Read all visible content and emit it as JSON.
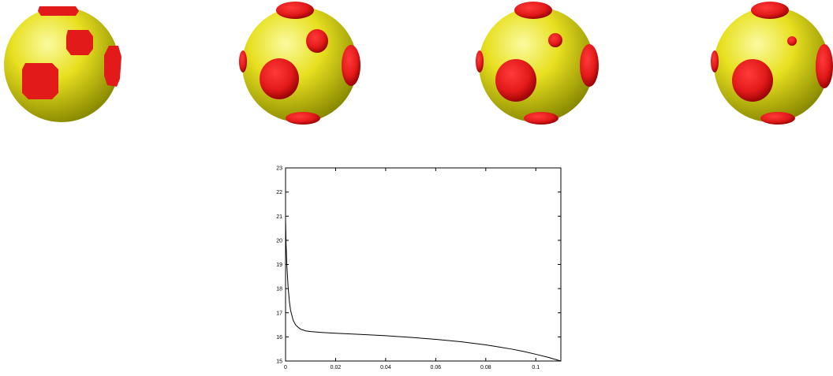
{
  "colors": {
    "sphere_base": "#e8e020",
    "sphere_highlight": "#fbfba0",
    "sphere_shade": "#8a8a00",
    "patch": "#e31a1a",
    "patch_dark": "#8e0000",
    "curve": "#000000"
  },
  "spheres": [
    {
      "id": "sphere-1",
      "description_icon": "sphere-with-patches-icon"
    },
    {
      "id": "sphere-2",
      "description_icon": "sphere-with-patches-icon"
    },
    {
      "id": "sphere-3",
      "description_icon": "sphere-with-patches-icon"
    },
    {
      "id": "sphere-4",
      "description_icon": "sphere-with-patches-icon"
    }
  ],
  "chart_data": {
    "type": "line",
    "title": "",
    "xlabel": "",
    "ylabel": "",
    "xlim": [
      0,
      0.11
    ],
    "ylim": [
      15,
      23
    ],
    "x_ticks": [
      "0",
      "0.02",
      "0.04",
      "0.06",
      "0.08",
      "0.1"
    ],
    "y_ticks": [
      "15",
      "16",
      "17",
      "18",
      "19",
      "20",
      "21",
      "22",
      "23"
    ],
    "x_tick_values": [
      0,
      0.02,
      0.04,
      0.06,
      0.08,
      0.1
    ],
    "y_tick_values": [
      15,
      16,
      17,
      18,
      19,
      20,
      21,
      22,
      23
    ],
    "grid": false,
    "series": [
      {
        "x": [
          0.0,
          0.0002,
          0.0005,
          0.001,
          0.0015,
          0.002,
          0.003,
          0.004,
          0.005,
          0.006,
          0.008,
          0.01,
          0.015,
          0.02,
          0.03,
          0.04,
          0.05,
          0.06,
          0.07,
          0.08,
          0.09,
          0.095,
          0.1,
          0.105,
          0.11
        ],
        "y": [
          20.9,
          19.9,
          19.0,
          18.1,
          17.5,
          17.1,
          16.7,
          16.5,
          16.4,
          16.32,
          16.25,
          16.22,
          16.18,
          16.15,
          16.1,
          16.05,
          15.98,
          15.9,
          15.8,
          15.67,
          15.5,
          15.4,
          15.28,
          15.15,
          15.0
        ]
      }
    ]
  }
}
